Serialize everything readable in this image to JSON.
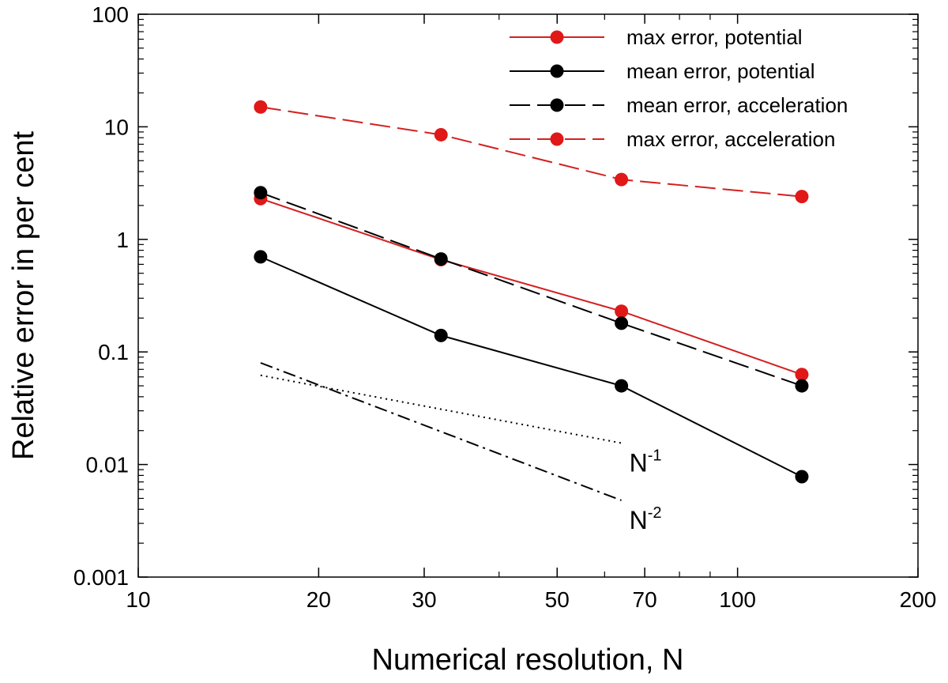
{
  "chart_data": {
    "type": "line",
    "xscale": "log",
    "yscale": "log",
    "xlabel": "Numerical resolution, N",
    "ylabel": "Relative error in per cent",
    "xlim": [
      10,
      200
    ],
    "ylim": [
      0.001,
      100
    ],
    "xticks": [
      10,
      20,
      30,
      50,
      70,
      100,
      200
    ],
    "xtick_labels": [
      "10",
      "20",
      "30",
      "50",
      "70",
      "100",
      "200"
    ],
    "yticks": [
      0.001,
      0.01,
      0.1,
      1,
      10,
      100
    ],
    "ytick_labels": [
      "0.001",
      "0.01",
      "0.1",
      "1",
      "10",
      "100"
    ],
    "grid": false,
    "legend_position": "top-right",
    "series": [
      {
        "name": "max error, potential",
        "color": "#d42020",
        "dash": "solid",
        "marker": true,
        "x": [
          16,
          32,
          64,
          128
        ],
        "y": [
          2.3,
          0.66,
          0.23,
          0.063
        ]
      },
      {
        "name": "mean error, potential",
        "color": "#000000",
        "dash": "solid",
        "marker": true,
        "x": [
          16,
          32,
          64,
          128
        ],
        "y": [
          0.7,
          0.14,
          0.05,
          0.0078
        ]
      },
      {
        "name": "mean error, acceleration",
        "color": "#000000",
        "dash": "long-dash",
        "marker": true,
        "x": [
          16,
          32,
          64,
          128
        ],
        "y": [
          2.6,
          0.67,
          0.18,
          0.05
        ]
      },
      {
        "name": "max error, acceleration",
        "color": "#d42020",
        "dash": "long-dash",
        "marker": true,
        "x": [
          16,
          32,
          64,
          128
        ],
        "y": [
          15,
          8.5,
          3.4,
          2.4
        ]
      }
    ],
    "reference_lines": [
      {
        "name": "N-1 slope",
        "style": "dotted",
        "color": "#000000",
        "x": [
          16,
          64
        ],
        "y": [
          0.062,
          0.0155
        ],
        "label_base": "N",
        "label_exp": "-1"
      },
      {
        "name": "N-2 slope",
        "style": "dash-dot",
        "color": "#000000",
        "x": [
          16,
          64
        ],
        "y": [
          0.08,
          0.0048
        ],
        "label_base": "N",
        "label_exp": "-2"
      }
    ]
  }
}
